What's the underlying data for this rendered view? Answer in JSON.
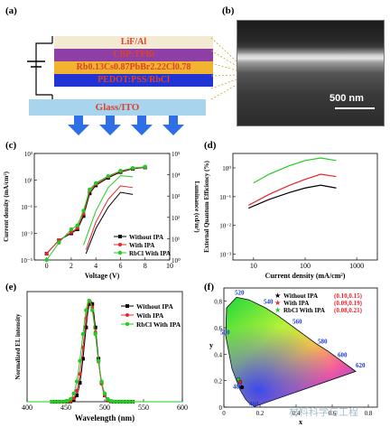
{
  "panels": {
    "a": "(a)",
    "b": "(b)",
    "c": "(c)",
    "d": "(d)",
    "e": "(e)",
    "f": "(f)"
  },
  "device": {
    "layers": [
      {
        "label": "LiF/Al",
        "color": "#f4ead4"
      },
      {
        "label": "CBP:TPBi",
        "color": "#8e3fa6"
      },
      {
        "label": "Rb0.13Cs0.87PbBr2.22Cl0.78",
        "color": "#f1b330"
      },
      {
        "label": "PEDOT:PSS/RbCl",
        "color": "#2034d6"
      },
      {
        "label": "Glass/ITO",
        "color": "#a9d4ee"
      }
    ],
    "arrow_color": "#2f6fe6"
  },
  "sem": {
    "scale_label": "500 nm"
  },
  "legend_series": [
    "Without IPA",
    "With IPA",
    "RbCl With IPA"
  ],
  "colors": {
    "without": "#000000",
    "with": "#e8242c",
    "rbcl": "#22cc22"
  },
  "chart_data": [
    {
      "panel": "c",
      "type": "line",
      "xlabel": "Voltage (V)",
      "ylabel": "Current density (mA/cm²)",
      "y2label": "Luminance (cd/m²)",
      "xlim": [
        -1,
        10
      ],
      "xticks": [
        0,
        2,
        4,
        6,
        8,
        10
      ],
      "ylog": true,
      "yticks": [
        "10⁻⁵",
        "10⁻³",
        "10⁻¹",
        "10¹",
        "10³"
      ],
      "y2ticks": [
        "10⁰",
        "10¹",
        "10²",
        "10³",
        "10⁴",
        "10⁵"
      ],
      "series": [
        {
          "name": "Without IPA",
          "x": [
            0,
            1,
            2,
            2.5,
            3,
            3.5,
            4,
            5,
            6,
            7,
            8
          ],
          "values": [
            3e-05,
            0.0003,
            0.001,
            0.002,
            0.02,
            1,
            4,
            15,
            40,
            70,
            90
          ]
        },
        {
          "name": "With IPA",
          "x": [
            0,
            1,
            2,
            2.5,
            3,
            3.5,
            4,
            5,
            6,
            7,
            8
          ],
          "values": [
            3e-05,
            0.0003,
            0.0012,
            0.0025,
            0.03,
            1.5,
            5,
            18,
            45,
            75,
            95
          ]
        },
        {
          "name": "RbCl With IPA",
          "x": [
            0,
            1,
            2,
            2.5,
            3,
            3.5,
            4,
            5,
            6,
            7,
            8
          ],
          "values": [
            1e-05,
            0.0002,
            0.002,
            0.004,
            0.05,
            2,
            6,
            20,
            50,
            80,
            100
          ]
        }
      ],
      "luminance": [
        {
          "name": "Without IPA",
          "x": [
            3.2,
            4,
            5,
            6,
            7
          ],
          "values": [
            2,
            30,
            300,
            1500,
            1200
          ]
        },
        {
          "name": "With IPA",
          "x": [
            3.2,
            4,
            5,
            6,
            7
          ],
          "values": [
            3,
            60,
            700,
            3000,
            2500
          ]
        },
        {
          "name": "RbCl With IPA",
          "x": [
            3,
            4,
            5,
            6,
            7
          ],
          "values": [
            5,
            200,
            2500,
            9000,
            8000
          ]
        }
      ]
    },
    {
      "panel": "d",
      "type": "line",
      "xlabel": "Current density (mA/cm²)",
      "ylabel": "External Quantum Efficiency (%)",
      "xlog": true,
      "ylog": true,
      "xticks": [
        "10",
        "100",
        "1000"
      ],
      "yticks": [
        "10⁻³",
        "10⁻²",
        "10⁻¹",
        "10⁰"
      ],
      "series": [
        {
          "name": "Without IPA",
          "x": [
            8,
            20,
            50,
            100,
            200,
            400
          ],
          "values": [
            0.04,
            0.08,
            0.14,
            0.2,
            0.25,
            0.2
          ]
        },
        {
          "name": "With IPA",
          "x": [
            8,
            20,
            50,
            100,
            200,
            400
          ],
          "values": [
            0.05,
            0.12,
            0.25,
            0.4,
            0.6,
            0.5
          ]
        },
        {
          "name": "RbCl With IPA",
          "x": [
            10,
            20,
            50,
            100,
            200,
            400
          ],
          "values": [
            0.3,
            0.6,
            1.2,
            1.8,
            2.2,
            1.8
          ]
        }
      ]
    },
    {
      "panel": "e",
      "type": "line",
      "xlabel": "Wavelength (nm)",
      "ylabel": "Normalized EL intensity",
      "xlim": [
        400,
        600
      ],
      "xticks": [
        400,
        450,
        500,
        550,
        600
      ],
      "series": [
        {
          "name": "Without IPA",
          "peak": 482,
          "fwhm": 18
        },
        {
          "name": "With IPA",
          "peak": 481,
          "fwhm": 19
        },
        {
          "name": "RbCl With IPA",
          "peak": 480,
          "fwhm": 21
        }
      ]
    },
    {
      "panel": "f",
      "type": "scatter",
      "xlabel": "x",
      "ylabel": "y",
      "xticks": [
        0,
        0.2,
        0.4,
        0.6,
        0.8
      ],
      "yticks": [
        0,
        0.2,
        0.4,
        0.6,
        0.8
      ],
      "wavelength_labels": [
        "520",
        "540",
        "560",
        "580",
        "600",
        "620",
        "500",
        "480",
        "460"
      ],
      "points": [
        {
          "name": "Without IPA",
          "coords": "(0.10,0.15)",
          "x": 0.1,
          "y": 0.15
        },
        {
          "name": "With IPA",
          "coords": "(0.09,0.19)",
          "x": 0.09,
          "y": 0.19
        },
        {
          "name": "RbCl With IPA",
          "coords": "(0.08,0.21)",
          "x": 0.08,
          "y": 0.21
        }
      ]
    }
  ],
  "watermark": "材料科学与工程"
}
